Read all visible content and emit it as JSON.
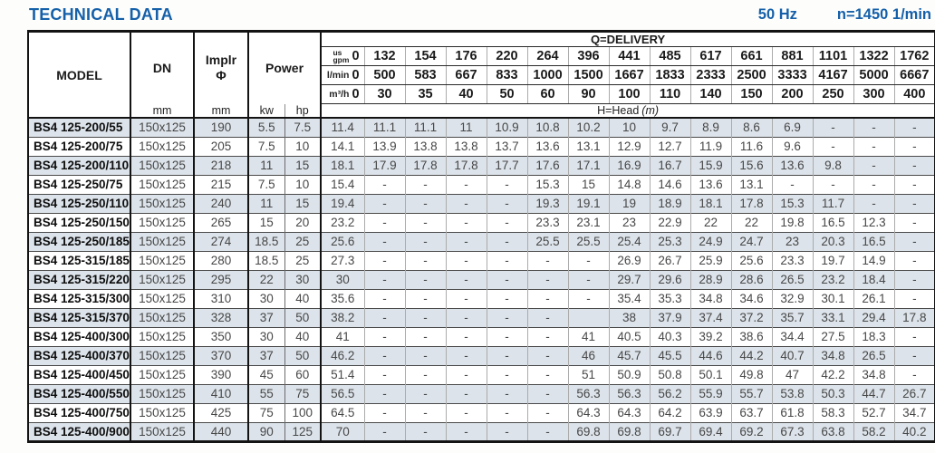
{
  "page": {
    "title": "TECHNICAL DATA",
    "frequency": "50 Hz",
    "speed": "n=1450 1/min"
  },
  "colors": {
    "accent_blue": "#1560a9",
    "row_shade": "#dce3ea",
    "border_dark": "#131313"
  },
  "table": {
    "headers": {
      "model": "MODEL",
      "dn": "DN",
      "implr_line1": "Implr",
      "implr_line2": "Φ",
      "power": "Power",
      "mm": "mm",
      "kw": "kw",
      "hp": "hp",
      "delivery_title": "Q=DELIVERY",
      "head_title_prefix": "H=Head",
      "head_title_unit": "(m)"
    },
    "unit_rows": [
      {
        "label_lines": [
          "us",
          "gpm"
        ],
        "zero": "0",
        "values": [
          "132",
          "154",
          "176",
          "220",
          "264",
          "396",
          "441",
          "485",
          "617",
          "661",
          "881",
          "1101",
          "1322",
          "1762"
        ]
      },
      {
        "label_lines": [
          "l/min"
        ],
        "zero": "0",
        "values": [
          "500",
          "583",
          "667",
          "833",
          "1000",
          "1500",
          "1667",
          "1833",
          "2333",
          "2500",
          "3333",
          "4167",
          "5000",
          "6667"
        ]
      },
      {
        "label_lines": [
          "m³/h"
        ],
        "zero": "0",
        "values": [
          "30",
          "35",
          "40",
          "50",
          "60",
          "90",
          "100",
          "110",
          "140",
          "150",
          "200",
          "250",
          "300",
          "400"
        ]
      }
    ],
    "rows": [
      {
        "model": "BS4 125-200/55",
        "dn": "150x125",
        "implr": "190",
        "kw": "5.5",
        "hp": "7.5",
        "head": [
          "11.4",
          "11.1",
          "11.1",
          "11",
          "10.9",
          "10.8",
          "10.2",
          "10",
          "9.7",
          "8.9",
          "8.6",
          "6.9",
          "-",
          "-",
          "-"
        ]
      },
      {
        "model": "BS4 125-200/75",
        "dn": "150x125",
        "implr": "205",
        "kw": "7.5",
        "hp": "10",
        "head": [
          "14.1",
          "13.9",
          "13.8",
          "13.8",
          "13.7",
          "13.6",
          "13.1",
          "12.9",
          "12.7",
          "11.9",
          "11.6",
          "9.6",
          "-",
          "-",
          "-"
        ]
      },
      {
        "model": "BS4 125-200/110",
        "dn": "150x125",
        "implr": "218",
        "kw": "11",
        "hp": "15",
        "head": [
          "18.1",
          "17.9",
          "17.8",
          "17.8",
          "17.7",
          "17.6",
          "17.1",
          "16.9",
          "16.7",
          "15.9",
          "15.6",
          "13.6",
          "9.8",
          "-",
          "-"
        ]
      },
      {
        "model": "BS4 125-250/75",
        "dn": "150x125",
        "implr": "215",
        "kw": "7.5",
        "hp": "10",
        "head": [
          "15.4",
          "-",
          "-",
          "-",
          "-",
          "15.3",
          "15",
          "14.8",
          "14.6",
          "13.6",
          "13.1",
          "-",
          "-",
          "-",
          "-"
        ]
      },
      {
        "model": "BS4 125-250/110",
        "dn": "150x125",
        "implr": "240",
        "kw": "11",
        "hp": "15",
        "head": [
          "19.4",
          "-",
          "-",
          "-",
          "-",
          "19.3",
          "19.1",
          "19",
          "18.9",
          "18.1",
          "17.8",
          "15.3",
          "11.7",
          "-",
          "-"
        ]
      },
      {
        "model": "BS4 125-250/150",
        "dn": "150x125",
        "implr": "265",
        "kw": "15",
        "hp": "20",
        "head": [
          "23.2",
          "-",
          "-",
          "-",
          "-",
          "23.3",
          "23.1",
          "23",
          "22.9",
          "22",
          "22",
          "19.8",
          "16.5",
          "12.3",
          "-"
        ]
      },
      {
        "model": "BS4 125-250/185",
        "dn": "150x125",
        "implr": "274",
        "kw": "18.5",
        "hp": "25",
        "head": [
          "25.6",
          "-",
          "-",
          "-",
          "-",
          "25.5",
          "25.5",
          "25.4",
          "25.3",
          "24.9",
          "24.7",
          "23",
          "20.3",
          "16.5",
          "-"
        ]
      },
      {
        "model": "BS4 125-315/185",
        "dn": "150x125",
        "implr": "280",
        "kw": "18.5",
        "hp": "25",
        "head": [
          "27.3",
          "-",
          "-",
          "-",
          "-",
          "-",
          "-",
          "26.9",
          "26.7",
          "25.9",
          "25.6",
          "23.3",
          "19.7",
          "14.9",
          "-"
        ]
      },
      {
        "model": "BS4 125-315/220",
        "dn": "150x125",
        "implr": "295",
        "kw": "22",
        "hp": "30",
        "head": [
          "30",
          "-",
          "-",
          "-",
          "-",
          "-",
          "-",
          "29.7",
          "29.6",
          "28.9",
          "28.6",
          "26.5",
          "23.2",
          "18.4",
          "-"
        ]
      },
      {
        "model": "BS4 125-315/300",
        "dn": "150x125",
        "implr": "310",
        "kw": "30",
        "hp": "40",
        "head": [
          "35.6",
          "-",
          "-",
          "-",
          "-",
          "-",
          "-",
          "35.4",
          "35.3",
          "34.8",
          "34.6",
          "32.9",
          "30.1",
          "26.1",
          "-"
        ]
      },
      {
        "model": "BS4 125-315/370",
        "dn": "150x125",
        "implr": "328",
        "kw": "37",
        "hp": "50",
        "head": [
          "38.2",
          "-",
          "-",
          "-",
          "-",
          "-",
          "",
          "38",
          "37.9",
          "37.4",
          "37.2",
          "35.7",
          "33.1",
          "29.4",
          "17.8"
        ]
      },
      {
        "model": "BS4 125-400/300",
        "dn": "150x125",
        "implr": "350",
        "kw": "30",
        "hp": "40",
        "head": [
          "41",
          "-",
          "-",
          "-",
          "-",
          "-",
          "41",
          "40.5",
          "40.3",
          "39.2",
          "38.6",
          "34.4",
          "27.5",
          "18.3",
          "-"
        ]
      },
      {
        "model": "BS4 125-400/370",
        "dn": "150x125",
        "implr": "370",
        "kw": "37",
        "hp": "50",
        "head": [
          "46.2",
          "-",
          "-",
          "-",
          "-",
          "-",
          "46",
          "45.7",
          "45.5",
          "44.6",
          "44.2",
          "40.7",
          "34.8",
          "26.5",
          "-"
        ]
      },
      {
        "model": "BS4 125-400/450",
        "dn": "150x125",
        "implr": "390",
        "kw": "45",
        "hp": "60",
        "head": [
          "51.4",
          "-",
          "-",
          "-",
          "-",
          "-",
          "51",
          "50.9",
          "50.8",
          "50.1",
          "49.8",
          "47",
          "42.2",
          "34.8",
          "-"
        ]
      },
      {
        "model": "BS4 125-400/550",
        "dn": "150x125",
        "implr": "410",
        "kw": "55",
        "hp": "75",
        "head": [
          "56.5",
          "-",
          "-",
          "-",
          "-",
          "-",
          "56.3",
          "56.3",
          "56.2",
          "55.9",
          "55.7",
          "53.8",
          "50.3",
          "44.7",
          "26.7"
        ]
      },
      {
        "model": "BS4 125-400/750",
        "dn": "150x125",
        "implr": "425",
        "kw": "75",
        "hp": "100",
        "head": [
          "64.5",
          "-",
          "-",
          "-",
          "-",
          "-",
          "64.3",
          "64.3",
          "64.2",
          "63.9",
          "63.7",
          "61.8",
          "58.3",
          "52.7",
          "34.7"
        ]
      },
      {
        "model": "BS4 125-400/900",
        "dn": "150x125",
        "implr": "440",
        "kw": "90",
        "hp": "125",
        "head": [
          "70",
          "-",
          "-",
          "-",
          "-",
          "-",
          "69.8",
          "69.8",
          "69.7",
          "69.4",
          "69.2",
          "67.3",
          "63.8",
          "58.2",
          "40.2"
        ]
      }
    ]
  }
}
